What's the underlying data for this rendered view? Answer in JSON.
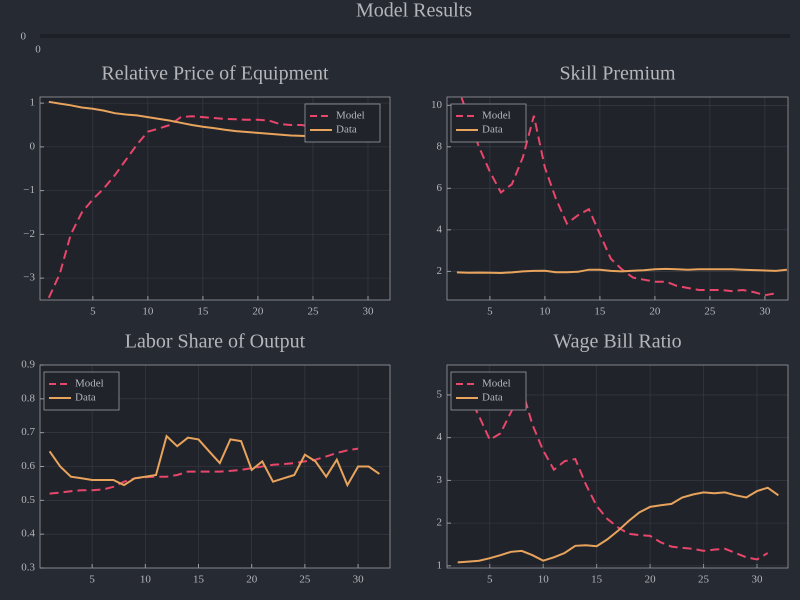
{
  "title": "Model Results",
  "header_axis": {
    "type": "empty",
    "xticks": [
      0
    ],
    "yticks": [
      0
    ]
  },
  "chart_data": [
    {
      "type": "line",
      "title": "Relative Price of Equipment",
      "xlim": [
        0.2,
        32
      ],
      "ylim": [
        -3.5,
        1.14
      ],
      "xticks": [
        5,
        10,
        15,
        20,
        25,
        30
      ],
      "yticks": [
        {
          "value": -3,
          "label": "−3"
        },
        {
          "value": -2,
          "label": "−2"
        },
        {
          "value": -1,
          "label": "−1"
        },
        0,
        1
      ],
      "grid": true,
      "legend": "top-right",
      "series": [
        {
          "name": "Model",
          "color": "#e8466a",
          "linestyle": "dash",
          "x": [
            1,
            2,
            3,
            4,
            5,
            6,
            7,
            8,
            9,
            10,
            11,
            12,
            13,
            14,
            15,
            16,
            17,
            18,
            19,
            20,
            21,
            22,
            23,
            24,
            25,
            26,
            27,
            28,
            29,
            30,
            31
          ],
          "values": [
            -3.45,
            -2.9,
            -2.0,
            -1.5,
            -1.2,
            -0.95,
            -0.65,
            -0.3,
            0.05,
            0.35,
            0.42,
            0.5,
            0.68,
            0.7,
            0.68,
            0.66,
            0.64,
            0.63,
            0.62,
            0.62,
            0.6,
            0.52,
            0.5,
            0.5,
            0.45,
            0.45,
            0.42,
            0.4,
            0.38,
            0.38,
            0.38
          ]
        },
        {
          "name": "Data",
          "color": "#e8a35c",
          "linestyle": "solid",
          "x": [
            1,
            2,
            3,
            4,
            5,
            6,
            7,
            8,
            9,
            10,
            11,
            12,
            13,
            14,
            15,
            16,
            17,
            18,
            19,
            20,
            21,
            22,
            23,
            24,
            25,
            26,
            27,
            28,
            29,
            30,
            31
          ],
          "values": [
            1.03,
            0.99,
            0.95,
            0.9,
            0.87,
            0.83,
            0.77,
            0.74,
            0.72,
            0.68,
            0.64,
            0.6,
            0.55,
            0.5,
            0.46,
            0.43,
            0.39,
            0.36,
            0.34,
            0.32,
            0.3,
            0.28,
            0.26,
            0.25,
            0.24,
            0.22,
            0.2,
            0.19,
            0.18,
            0.17,
            0.16
          ]
        }
      ]
    },
    {
      "type": "line",
      "title": "Skill Premium",
      "xlim": [
        1.1,
        32.1
      ],
      "ylim": [
        0.62,
        10.4
      ],
      "xticks": [
        5,
        10,
        15,
        20,
        25,
        30
      ],
      "yticks": [
        2,
        4,
        6,
        8,
        10
      ],
      "grid": true,
      "legend": "top-left",
      "series": [
        {
          "name": "Model",
          "color": "#e8466a",
          "linestyle": "dash",
          "x": [
            2,
            3,
            4,
            5,
            6,
            7,
            8,
            9,
            10,
            11,
            12,
            13,
            14,
            15,
            16,
            17,
            18,
            19,
            20,
            21,
            22,
            23,
            24,
            25,
            26,
            27,
            28,
            29,
            30,
            31
          ],
          "values": [
            11.0,
            9.5,
            8.0,
            6.8,
            5.8,
            6.2,
            7.5,
            9.5,
            7.0,
            5.5,
            4.3,
            4.7,
            5.0,
            3.8,
            2.6,
            2.1,
            1.7,
            1.6,
            1.5,
            1.5,
            1.3,
            1.2,
            1.1,
            1.1,
            1.1,
            1.05,
            1.1,
            1.0,
            0.85,
            0.95
          ]
        },
        {
          "name": "Data",
          "color": "#e8a35c",
          "linestyle": "solid",
          "x": [
            2,
            3,
            4,
            5,
            6,
            7,
            8,
            9,
            10,
            11,
            12,
            13,
            14,
            15,
            16,
            17,
            18,
            19,
            20,
            21,
            22,
            23,
            24,
            25,
            26,
            27,
            28,
            29,
            30,
            31,
            32
          ],
          "values": [
            1.95,
            1.93,
            1.94,
            1.93,
            1.92,
            1.95,
            2.0,
            2.02,
            2.03,
            1.96,
            1.96,
            1.98,
            2.08,
            2.08,
            2.02,
            2.0,
            2.03,
            2.05,
            2.1,
            2.12,
            2.1,
            2.08,
            2.1,
            2.1,
            2.1,
            2.1,
            2.08,
            2.06,
            2.04,
            2.02,
            2.08
          ]
        }
      ]
    },
    {
      "type": "line",
      "title": "Labor Share of Output",
      "xlim": [
        0.1,
        33
      ],
      "ylim": [
        0.3,
        0.9
      ],
      "xticks": [
        5,
        10,
        15,
        20,
        25,
        30
      ],
      "yticks": [
        0.3,
        0.4,
        0.5,
        0.6,
        0.7,
        0.8,
        0.9
      ],
      "grid": true,
      "legend": "top-left",
      "series": [
        {
          "name": "Model",
          "color": "#e8466a",
          "linestyle": "dash",
          "x": [
            1,
            2,
            3,
            4,
            5,
            6,
            7,
            8,
            9,
            10,
            11,
            12,
            13,
            14,
            15,
            16,
            17,
            18,
            19,
            20,
            21,
            22,
            23,
            24,
            25,
            26,
            27,
            28,
            29,
            30
          ],
          "values": [
            0.52,
            0.523,
            0.527,
            0.53,
            0.53,
            0.532,
            0.54,
            0.555,
            0.565,
            0.568,
            0.57,
            0.57,
            0.575,
            0.585,
            0.585,
            0.585,
            0.585,
            0.587,
            0.59,
            0.595,
            0.6,
            0.605,
            0.607,
            0.61,
            0.615,
            0.62,
            0.63,
            0.64,
            0.648,
            0.653
          ]
        },
        {
          "name": "Data",
          "color": "#e8a35c",
          "linestyle": "solid",
          "x": [
            1,
            2,
            3,
            4,
            5,
            6,
            7,
            8,
            9,
            10,
            11,
            12,
            13,
            14,
            15,
            16,
            17,
            18,
            19,
            20,
            21,
            22,
            23,
            24,
            25,
            26,
            27,
            28,
            29,
            30,
            31,
            32
          ],
          "values": [
            0.645,
            0.6,
            0.57,
            0.565,
            0.56,
            0.56,
            0.56,
            0.545,
            0.565,
            0.57,
            0.575,
            0.69,
            0.66,
            0.685,
            0.68,
            0.645,
            0.61,
            0.68,
            0.675,
            0.59,
            0.615,
            0.555,
            0.565,
            0.575,
            0.635,
            0.615,
            0.57,
            0.62,
            0.545,
            0.6,
            0.6,
            0.578
          ]
        }
      ]
    },
    {
      "type": "line",
      "title": "Wage Bill Ratio",
      "xlim": [
        1,
        32.9
      ],
      "ylim": [
        0.95,
        5.7
      ],
      "xticks": [
        5,
        10,
        15,
        20,
        25,
        30
      ],
      "yticks": [
        1,
        2,
        3,
        4,
        5
      ],
      "grid": true,
      "legend": "top-left",
      "series": [
        {
          "name": "Model",
          "color": "#e8466a",
          "linestyle": "dash",
          "x": [
            2,
            3,
            4,
            5,
            6,
            7,
            8,
            9,
            10,
            11,
            12,
            13,
            14,
            15,
            16,
            17,
            18,
            19,
            20,
            21,
            22,
            23,
            24,
            25,
            26,
            27,
            28,
            29,
            30,
            31
          ],
          "values": [
            5.3,
            5.0,
            4.5,
            3.95,
            4.1,
            4.6,
            5.15,
            4.3,
            3.7,
            3.25,
            3.45,
            3.5,
            2.9,
            2.4,
            2.1,
            1.9,
            1.75,
            1.72,
            1.7,
            1.55,
            1.45,
            1.42,
            1.4,
            1.35,
            1.38,
            1.4,
            1.3,
            1.2,
            1.15,
            1.3
          ]
        },
        {
          "name": "Data",
          "color": "#e8a35c",
          "linestyle": "solid",
          "x": [
            2,
            3,
            4,
            5,
            6,
            7,
            8,
            9,
            10,
            11,
            12,
            13,
            14,
            15,
            16,
            17,
            18,
            19,
            20,
            21,
            22,
            23,
            24,
            25,
            26,
            27,
            28,
            29,
            30,
            31,
            32
          ],
          "values": [
            1.08,
            1.1,
            1.12,
            1.18,
            1.25,
            1.33,
            1.35,
            1.25,
            1.12,
            1.2,
            1.3,
            1.47,
            1.48,
            1.46,
            1.62,
            1.82,
            2.05,
            2.25,
            2.38,
            2.42,
            2.45,
            2.6,
            2.67,
            2.72,
            2.7,
            2.72,
            2.65,
            2.6,
            2.75,
            2.83,
            2.65
          ]
        }
      ]
    }
  ]
}
